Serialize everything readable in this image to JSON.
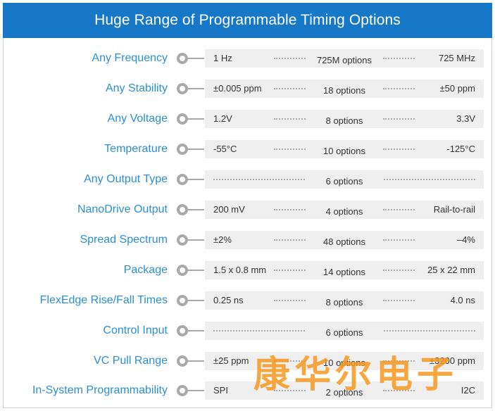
{
  "header": {
    "title": "Huge Range of Programmable Timing Options"
  },
  "rows": [
    {
      "label": "Any Frequency",
      "min": "1 Hz",
      "options": "725M options",
      "max": "725 MHz"
    },
    {
      "label": "Any Stability",
      "min": "±0.005 ppm",
      "options": "18 options",
      "max": "±50 ppm"
    },
    {
      "label": "Any Voltage",
      "min": "1.2V",
      "options": "8 options",
      "max": "3.3V"
    },
    {
      "label": "Temperature",
      "min": "-55°C",
      "options": "10 options",
      "max": "-125°C"
    },
    {
      "label": "Any Output Type",
      "min": "",
      "options": "6 options",
      "max": ""
    },
    {
      "label": "NanoDrive Output",
      "min": "200 mV",
      "options": "4 options",
      "max": "Rail-to-rail"
    },
    {
      "label": "Spread Spectrum",
      "min": "±2%",
      "options": "48 options",
      "max": "–4%"
    },
    {
      "label": "Package",
      "min": "1.5 x 0.8 mm",
      "options": "14 options",
      "max": "25 x 22 mm"
    },
    {
      "label": "FlexEdge Rise/Fall Times",
      "min": "0.25 ns",
      "options": "8 options",
      "max": "4.0 ns"
    },
    {
      "label": "Control Input",
      "min": "",
      "options": "6 options",
      "max": ""
    },
    {
      "label": "VC Pull Range",
      "min": "±25 ppm",
      "options": "10 options",
      "max": "±3200 ppm"
    },
    {
      "label": "In-System Programmability",
      "min": "SPI",
      "options": "2 options",
      "max": "I2C"
    }
  ],
  "watermark": {
    "text": "康华尔电子"
  },
  "colors": {
    "header_bg": "#1778c8",
    "label": "#2a8fd4",
    "bar_bg": "#efefef",
    "knob": "#a9a9a9",
    "watermark": "#f6961e"
  }
}
